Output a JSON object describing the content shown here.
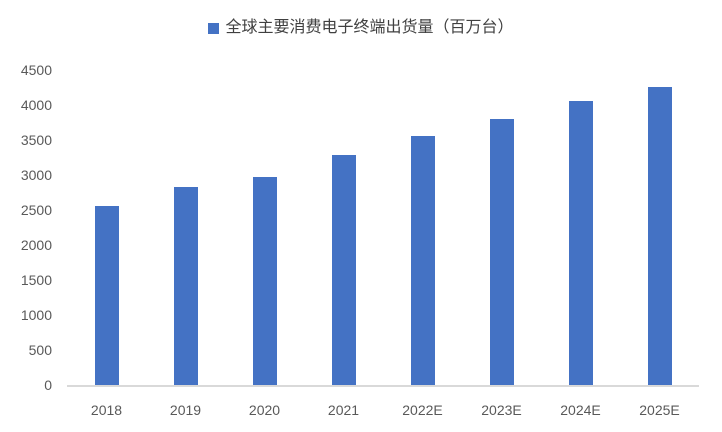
{
  "chart_data": {
    "type": "bar",
    "title": "全球主要消费电子终端出货量（百万台）",
    "legend": [
      "全球主要消费电子终端出货量（百万台）"
    ],
    "legend_position": "top-center",
    "categories": [
      "2018",
      "2019",
      "2020",
      "2021",
      "2022E",
      "2023E",
      "2024E",
      "2025E"
    ],
    "values": [
      2560,
      2830,
      2970,
      3280,
      3560,
      3800,
      4060,
      4260
    ],
    "xlabel": "",
    "ylabel": "",
    "ylim": [
      0,
      4500
    ],
    "ytick_step": 500,
    "ytick_labels": [
      "0",
      "500",
      "1000",
      "1500",
      "2000",
      "2500",
      "3000",
      "3500",
      "4000",
      "4500"
    ],
    "grid": false,
    "colors": {
      "bar": "#4472C4",
      "legend_text": "#404040",
      "axis_text": "#595959",
      "axis_line": "#D9D9D9",
      "background": "#FFFFFF"
    }
  }
}
